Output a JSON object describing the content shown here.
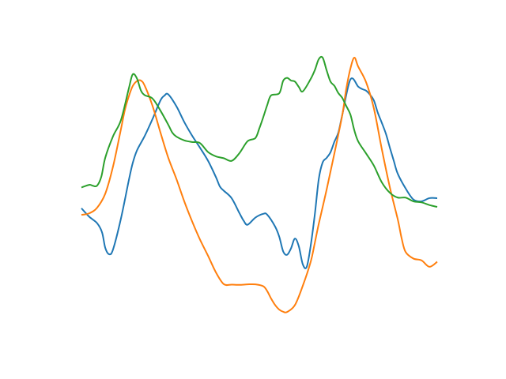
{
  "chart_data": {
    "type": "line",
    "title": "",
    "xlabel": "",
    "ylabel": "",
    "axes_visible": false,
    "grid": false,
    "legend": "none",
    "xlim": [
      0,
      1
    ],
    "ylim": [
      0,
      1
    ],
    "series": [
      {
        "color": "#1f77b4",
        "x": [
          0.0,
          0.022,
          0.044,
          0.058,
          0.067,
          0.078,
          0.089,
          0.111,
          0.133,
          0.144,
          0.156,
          0.178,
          0.2,
          0.222,
          0.233,
          0.244,
          0.267,
          0.289,
          0.311,
          0.333,
          0.356,
          0.378,
          0.389,
          0.4,
          0.422,
          0.444,
          0.456,
          0.467,
          0.489,
          0.511,
          0.522,
          0.544,
          0.556,
          0.567,
          0.578,
          0.589,
          0.6,
          0.611,
          0.622,
          0.633,
          0.644,
          0.656,
          0.667,
          0.678,
          0.689,
          0.7,
          0.711,
          0.722,
          0.733,
          0.756,
          0.778,
          0.789,
          0.8,
          0.811,
          0.822,
          0.833,
          0.844,
          0.856,
          0.867,
          0.878,
          0.889,
          0.911,
          0.933,
          0.956,
          0.978,
          1.0
        ],
        "y": [
          0.434,
          0.402,
          0.378,
          0.343,
          0.285,
          0.261,
          0.28,
          0.395,
          0.538,
          0.603,
          0.651,
          0.706,
          0.77,
          0.839,
          0.857,
          0.862,
          0.817,
          0.758,
          0.707,
          0.662,
          0.612,
          0.551,
          0.516,
          0.5,
          0.472,
          0.416,
          0.387,
          0.372,
          0.399,
          0.413,
          0.41,
          0.366,
          0.327,
          0.272,
          0.259,
          0.283,
          0.32,
          0.291,
          0.224,
          0.213,
          0.29,
          0.411,
          0.543,
          0.606,
          0.623,
          0.644,
          0.684,
          0.718,
          0.784,
          0.918,
          0.891,
          0.882,
          0.876,
          0.861,
          0.839,
          0.793,
          0.756,
          0.713,
          0.661,
          0.612,
          0.564,
          0.509,
          0.467,
          0.46,
          0.472,
          0.472
        ]
      },
      {
        "color": "#ff7f0e",
        "x": [
          0.0,
          0.022,
          0.044,
          0.067,
          0.089,
          0.111,
          0.122,
          0.133,
          0.144,
          0.156,
          0.167,
          0.178,
          0.2,
          0.222,
          0.244,
          0.267,
          0.289,
          0.311,
          0.333,
          0.356,
          0.378,
          0.4,
          0.422,
          0.444,
          0.467,
          0.489,
          0.511,
          0.522,
          0.533,
          0.544,
          0.556,
          0.567,
          0.578,
          0.6,
          0.622,
          0.644,
          0.656,
          0.667,
          0.689,
          0.711,
          0.733,
          0.744,
          0.756,
          0.767,
          0.778,
          0.8,
          0.822,
          0.844,
          0.867,
          0.889,
          0.9,
          0.911,
          0.933,
          0.956,
          0.978,
          1.0
        ],
        "y": [
          0.409,
          0.415,
          0.436,
          0.489,
          0.592,
          0.731,
          0.803,
          0.854,
          0.893,
          0.912,
          0.914,
          0.894,
          0.818,
          0.719,
          0.624,
          0.544,
          0.46,
          0.385,
          0.317,
          0.255,
          0.193,
          0.149,
          0.147,
          0.146,
          0.148,
          0.148,
          0.141,
          0.123,
          0.095,
          0.071,
          0.053,
          0.045,
          0.044,
          0.07,
          0.142,
          0.231,
          0.304,
          0.375,
          0.503,
          0.64,
          0.783,
          0.88,
          0.959,
          1.0,
          0.966,
          0.908,
          0.809,
          0.658,
          0.512,
          0.393,
          0.321,
          0.27,
          0.245,
          0.238,
          0.214,
          0.233
        ]
      },
      {
        "color": "#2ca02c",
        "x": [
          0.0,
          0.022,
          0.033,
          0.044,
          0.056,
          0.067,
          0.089,
          0.111,
          0.133,
          0.144,
          0.156,
          0.167,
          0.178,
          0.2,
          0.222,
          0.244,
          0.256,
          0.267,
          0.289,
          0.311,
          0.333,
          0.356,
          0.378,
          0.4,
          0.422,
          0.444,
          0.467,
          0.489,
          0.5,
          0.511,
          0.522,
          0.533,
          0.556,
          0.567,
          0.578,
          0.589,
          0.6,
          0.611,
          0.622,
          0.644,
          0.656,
          0.667,
          0.678,
          0.689,
          0.7,
          0.711,
          0.722,
          0.733,
          0.744,
          0.756,
          0.767,
          0.778,
          0.8,
          0.822,
          0.844,
          0.867,
          0.889,
          0.911,
          0.933,
          0.956,
          0.978,
          1.0
        ],
        "y": [
          0.512,
          0.522,
          0.518,
          0.519,
          0.553,
          0.624,
          0.705,
          0.765,
          0.883,
          0.937,
          0.922,
          0.877,
          0.859,
          0.846,
          0.801,
          0.748,
          0.717,
          0.703,
          0.689,
          0.683,
          0.679,
          0.645,
          0.629,
          0.622,
          0.612,
          0.641,
          0.686,
          0.698,
          0.734,
          0.776,
          0.821,
          0.858,
          0.866,
          0.913,
          0.924,
          0.914,
          0.91,
          0.89,
          0.873,
          0.919,
          0.953,
          0.994,
          1.0,
          0.953,
          0.91,
          0.894,
          0.867,
          0.849,
          0.819,
          0.786,
          0.727,
          0.685,
          0.64,
          0.594,
          0.532,
          0.492,
          0.474,
          0.474,
          0.46,
          0.456,
          0.446,
          0.439
        ]
      }
    ]
  }
}
